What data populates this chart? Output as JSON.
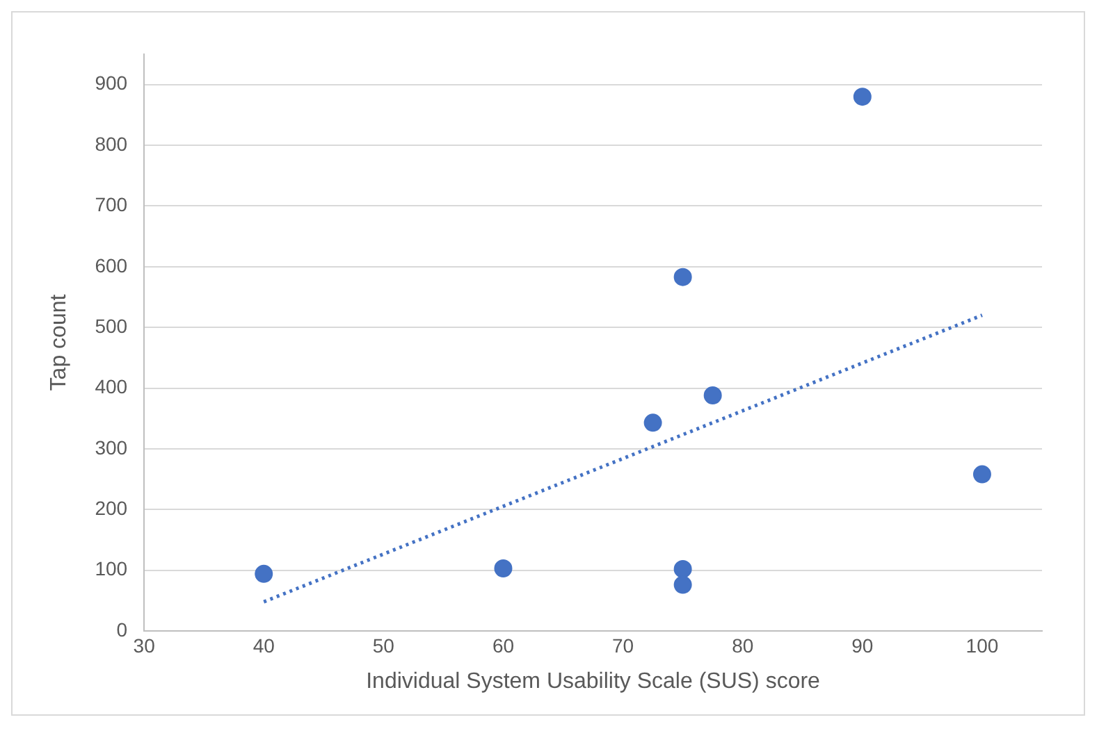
{
  "chart_data": {
    "type": "scatter",
    "xlabel": "Individual System Usability Scale (SUS) score",
    "ylabel": "Tap count",
    "xlim": [
      30,
      105
    ],
    "xticks": [
      30,
      40,
      50,
      60,
      70,
      80,
      90,
      100
    ],
    "ylim": [
      0,
      950
    ],
    "yticks": [
      0,
      100,
      200,
      300,
      400,
      500,
      600,
      700,
      800,
      900
    ],
    "grid": "y",
    "legend": false,
    "marker": "circle",
    "series": [
      {
        "color": "#4472c4",
        "x": [
          40,
          60,
          72.5,
          75,
          75,
          75,
          77.5,
          90,
          100
        ],
        "values": [
          94,
          103,
          343,
          583,
          102,
          76,
          388,
          880,
          258
        ]
      },
      {
        "type": "line",
        "color": "#4472c4",
        "line_style": "dotted",
        "marker": "none",
        "x": [
          40,
          100
        ],
        "values": [
          48,
          520
        ]
      }
    ]
  }
}
